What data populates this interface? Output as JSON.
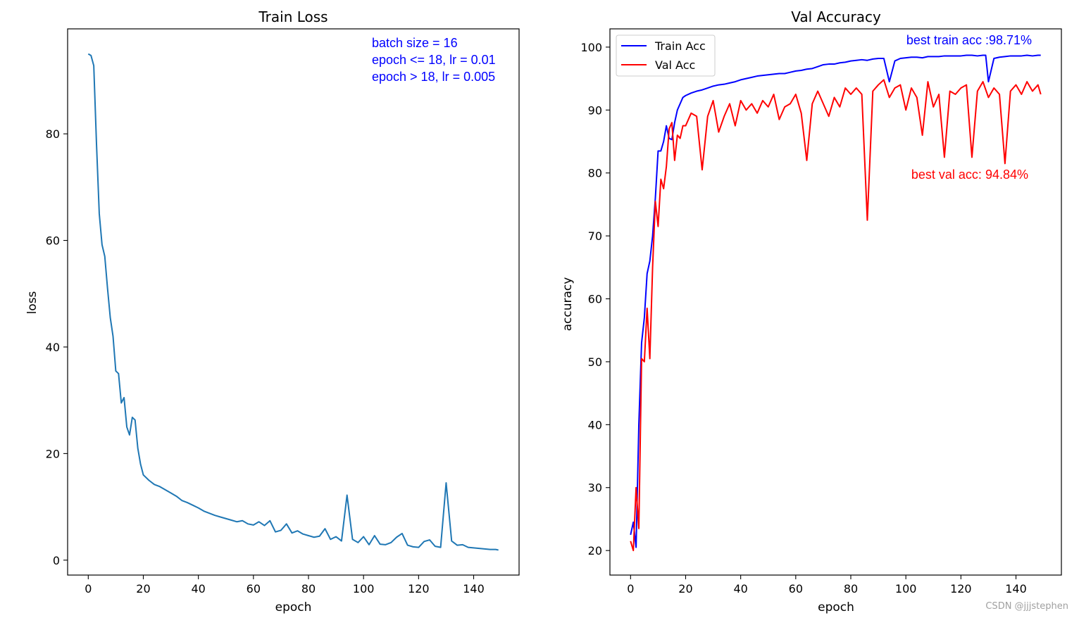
{
  "watermark": "CSDN @jjjstephen",
  "colors": {
    "loss": "#1f77b4",
    "train_acc": "#0000ff",
    "val_acc": "#ff0000",
    "annotation_blue": "#0000ff",
    "annotation_red": "#ff0000"
  },
  "chart_data": [
    {
      "type": "line",
      "title": "Train Loss",
      "xlabel": "epoch",
      "ylabel": "loss",
      "xlim": [
        -7.5,
        156.5
      ],
      "ylim": [
        -2.8,
        99.7
      ],
      "xticks": [
        0,
        20,
        40,
        60,
        80,
        100,
        120,
        140
      ],
      "yticks": [
        0,
        20,
        40,
        60,
        80
      ],
      "grid": false,
      "annotations": [
        "batch size = 16",
        "epoch <= 18, lr = 0.01",
        "epoch > 18, lr = 0.005"
      ],
      "series": [
        {
          "name": "loss",
          "x": [
            0,
            1,
            2,
            3,
            4,
            5,
            6,
            7,
            8,
            9,
            10,
            11,
            12,
            13,
            14,
            15,
            16,
            17,
            18,
            19,
            20,
            22,
            24,
            26,
            28,
            30,
            32,
            34,
            36,
            38,
            40,
            42,
            44,
            46,
            48,
            50,
            52,
            54,
            56,
            58,
            60,
            62,
            64,
            66,
            68,
            70,
            72,
            74,
            76,
            78,
            80,
            82,
            84,
            86,
            88,
            90,
            92,
            94,
            96,
            98,
            100,
            102,
            104,
            106,
            108,
            110,
            112,
            114,
            116,
            118,
            120,
            122,
            124,
            126,
            128,
            130,
            132,
            134,
            136,
            138,
            140,
            142,
            144,
            146,
            148,
            149
          ],
          "values": [
            95,
            94.7,
            92.8,
            78,
            65,
            59.2,
            57,
            51,
            45.5,
            42,
            35.5,
            35,
            29.5,
            30.5,
            25,
            23.5,
            26.8,
            26.3,
            21,
            18,
            16,
            15,
            14.2,
            13.8,
            13.2,
            12.6,
            12,
            11.2,
            10.8,
            10.3,
            9.8,
            9.2,
            8.8,
            8.4,
            8.1,
            7.8,
            7.5,
            7.2,
            7.4,
            6.8,
            6.6,
            7.2,
            6.5,
            7.4,
            5.3,
            5.6,
            6.8,
            5.1,
            5.5,
            4.9,
            4.6,
            4.3,
            4.5,
            5.9,
            3.9,
            4.4,
            3.6,
            12.2,
            3.9,
            3.3,
            4.4,
            2.9,
            4.6,
            3.0,
            2.9,
            3.3,
            4.3,
            5.0,
            2.8,
            2.5,
            2.4,
            3.5,
            3.8,
            2.6,
            2.4,
            14.5,
            3.6,
            2.8,
            2.9,
            2.4,
            2.3,
            2.2,
            2.1,
            2.0,
            2.0,
            1.9
          ]
        }
      ]
    },
    {
      "type": "line",
      "title": "Val Accuracy",
      "xlabel": "epoch",
      "ylabel": "accuracy",
      "xlim": [
        -7.5,
        156.5
      ],
      "ylim": [
        16.1,
        102.9
      ],
      "xticks": [
        0,
        20,
        40,
        60,
        80,
        100,
        120,
        140
      ],
      "yticks": [
        20,
        30,
        40,
        50,
        60,
        70,
        80,
        90,
        100
      ],
      "grid": false,
      "legend": {
        "placement": "top-left",
        "entries": [
          "Train Acc",
          "Val Acc"
        ]
      },
      "annotations": {
        "best_train": "best train acc :98.71%",
        "best_val": "best val acc: 94.84%"
      },
      "series": [
        {
          "name": "Train Acc",
          "x": [
            0,
            1,
            2,
            3,
            4,
            5,
            6,
            7,
            8,
            9,
            10,
            11,
            12,
            13,
            14,
            15,
            16,
            17,
            18,
            19,
            20,
            22,
            24,
            26,
            28,
            30,
            32,
            34,
            36,
            38,
            40,
            42,
            44,
            46,
            48,
            50,
            52,
            54,
            56,
            58,
            60,
            62,
            64,
            66,
            68,
            70,
            72,
            74,
            76,
            78,
            80,
            82,
            84,
            86,
            88,
            90,
            92,
            94,
            96,
            98,
            100,
            102,
            104,
            106,
            108,
            110,
            112,
            114,
            116,
            118,
            120,
            122,
            124,
            126,
            128,
            129,
            130,
            132,
            134,
            136,
            138,
            140,
            142,
            144,
            146,
            148,
            149
          ],
          "values": [
            22.5,
            24.5,
            20.5,
            40,
            53,
            57,
            64,
            66,
            70,
            76,
            83.5,
            83.5,
            85,
            87.5,
            85.5,
            85.3,
            88,
            90,
            91,
            92,
            92.3,
            92.7,
            93,
            93.2,
            93.5,
            93.8,
            94,
            94.1,
            94.3,
            94.5,
            94.8,
            95,
            95.2,
            95.4,
            95.5,
            95.6,
            95.7,
            95.8,
            95.8,
            96,
            96.2,
            96.3,
            96.5,
            96.6,
            96.9,
            97.2,
            97.3,
            97.3,
            97.5,
            97.6,
            97.8,
            97.9,
            98,
            97.9,
            98.1,
            98.2,
            98.2,
            94.5,
            97.8,
            98.2,
            98.3,
            98.4,
            98.4,
            98.3,
            98.5,
            98.5,
            98.5,
            98.6,
            98.6,
            98.6,
            98.6,
            98.7,
            98.7,
            98.6,
            98.7,
            98.7,
            94.5,
            98.2,
            98.4,
            98.5,
            98.6,
            98.6,
            98.6,
            98.7,
            98.6,
            98.7,
            98.7
          ]
        },
        {
          "name": "Val Acc",
          "x": [
            0,
            1,
            2,
            3,
            4,
            5,
            6,
            7,
            8,
            9,
            10,
            11,
            12,
            13,
            14,
            15,
            16,
            17,
            18,
            19,
            20,
            22,
            24,
            26,
            28,
            30,
            32,
            34,
            36,
            38,
            40,
            42,
            44,
            46,
            48,
            50,
            52,
            54,
            56,
            58,
            60,
            62,
            64,
            66,
            68,
            70,
            72,
            74,
            76,
            78,
            80,
            82,
            84,
            86,
            88,
            90,
            92,
            94,
            96,
            98,
            100,
            102,
            104,
            106,
            108,
            110,
            112,
            114,
            116,
            118,
            120,
            122,
            124,
            126,
            128,
            130,
            132,
            134,
            136,
            138,
            140,
            142,
            144,
            146,
            148,
            149
          ],
          "values": [
            21.5,
            20,
            30,
            23.5,
            50.5,
            50,
            58.5,
            50.5,
            65,
            75.5,
            71.5,
            79,
            77.5,
            81,
            87,
            88,
            82,
            86,
            85.5,
            87.5,
            87.5,
            89.5,
            89,
            80.5,
            89,
            91.5,
            86.5,
            89,
            91,
            87.5,
            91.5,
            90,
            91,
            89.5,
            91.5,
            90.5,
            92.5,
            88.5,
            90.5,
            91,
            92.5,
            89.5,
            82,
            91,
            93,
            91,
            89,
            92,
            90.5,
            93.5,
            92.5,
            93.5,
            92.5,
            72.5,
            93,
            94,
            94.8,
            92,
            93.5,
            94,
            90,
            93.5,
            92,
            86,
            94.5,
            90.5,
            92.5,
            82.5,
            93,
            92.5,
            93.5,
            94,
            82.5,
            93,
            94.5,
            92,
            93.5,
            92.5,
            81.5,
            93,
            94,
            92.5,
            94.5,
            93,
            94,
            92.5
          ]
        }
      ]
    }
  ]
}
